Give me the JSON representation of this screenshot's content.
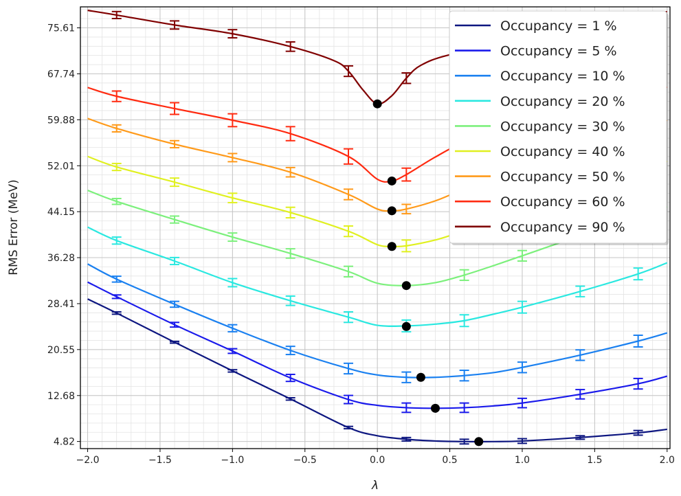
{
  "chart_data": {
    "type": "line",
    "title": "",
    "xlabel": "λ",
    "ylabel": "RMS Error (MeV)",
    "xlim": [
      -2.05,
      2.02
    ],
    "ylim": [
      3.6,
      79.2
    ],
    "x_ticks": [
      -2.0,
      -1.5,
      -1.0,
      -0.5,
      0.0,
      0.5,
      1.0,
      1.5,
      2.0
    ],
    "x_tick_labels": [
      "−2.0",
      "−1.5",
      "−1.0",
      "−0.5",
      "0.0",
      "0.5",
      "1.0",
      "1.5",
      "2.0"
    ],
    "y_ticks": [
      4.82,
      12.68,
      20.55,
      28.41,
      36.28,
      44.15,
      52.01,
      59.88,
      67.74,
      75.61
    ],
    "y_tick_labels": [
      "4.82",
      "12.68",
      "20.55",
      "28.41",
      "36.28",
      "44.15",
      "52.01",
      "59.88",
      "67.74",
      "75.61"
    ],
    "grid": true,
    "legend_position": "top-right",
    "series": [
      {
        "name": "Occupancy = 1 %",
        "color": "#0d1680",
        "x": [
          -2.0,
          -1.8,
          -1.4,
          -1.0,
          -0.6,
          -0.2,
          0.0,
          0.2,
          0.4,
          0.6,
          0.8,
          1.0,
          1.4,
          1.8,
          2.0
        ],
        "y": [
          29.2,
          26.8,
          21.8,
          16.9,
          12.1,
          7.2,
          5.8,
          5.2,
          4.9,
          4.8,
          4.8,
          4.9,
          5.5,
          6.3,
          6.9
        ],
        "errorbars": [
          {
            "x": -1.8,
            "y": 26.8,
            "err": 0.2
          },
          {
            "x": -1.4,
            "y": 21.8,
            "err": 0.15
          },
          {
            "x": -1.0,
            "y": 16.9,
            "err": 0.2
          },
          {
            "x": -0.6,
            "y": 12.1,
            "err": 0.2
          },
          {
            "x": -0.2,
            "y": 7.2,
            "err": 0.2
          },
          {
            "x": 0.2,
            "y": 5.2,
            "err": 0.3
          },
          {
            "x": 0.6,
            "y": 4.8,
            "err": 0.4
          },
          {
            "x": 1.0,
            "y": 4.9,
            "err": 0.4
          },
          {
            "x": 1.4,
            "y": 5.5,
            "err": 0.3
          },
          {
            "x": 1.8,
            "y": 6.3,
            "err": 0.4
          }
        ],
        "minimum": {
          "x": 0.7,
          "y": 4.8
        }
      },
      {
        "name": "Occupancy = 5 %",
        "color": "#1a1aeb",
        "x": [
          -2.0,
          -1.8,
          -1.4,
          -1.0,
          -0.6,
          -0.2,
          0.0,
          0.2,
          0.4,
          0.6,
          0.8,
          1.0,
          1.4,
          1.8,
          2.0
        ],
        "y": [
          32.1,
          29.6,
          24.8,
          20.3,
          15.7,
          12.0,
          11.0,
          10.6,
          10.5,
          10.6,
          10.9,
          11.4,
          12.9,
          14.7,
          16.0
        ],
        "errorbars": [
          {
            "x": -1.8,
            "y": 29.6,
            "err": 0.3
          },
          {
            "x": -1.4,
            "y": 24.8,
            "err": 0.4
          },
          {
            "x": -1.0,
            "y": 20.3,
            "err": 0.4
          },
          {
            "x": -0.6,
            "y": 15.7,
            "err": 0.6
          },
          {
            "x": -0.2,
            "y": 12.0,
            "err": 0.7
          },
          {
            "x": 0.2,
            "y": 10.6,
            "err": 0.8
          },
          {
            "x": 0.6,
            "y": 10.6,
            "err": 0.8
          },
          {
            "x": 1.0,
            "y": 11.4,
            "err": 0.8
          },
          {
            "x": 1.4,
            "y": 12.9,
            "err": 0.8
          },
          {
            "x": 1.8,
            "y": 14.7,
            "err": 0.9
          }
        ],
        "minimum": {
          "x": 0.4,
          "y": 10.5
        }
      },
      {
        "name": "Occupancy = 10 %",
        "color": "#1a80f0",
        "x": [
          -2.0,
          -1.8,
          -1.4,
          -1.0,
          -0.6,
          -0.2,
          0.0,
          0.2,
          0.4,
          0.6,
          0.8,
          1.0,
          1.4,
          1.8,
          2.0
        ],
        "y": [
          35.2,
          32.6,
          28.3,
          24.2,
          20.4,
          17.3,
          16.2,
          15.8,
          15.8,
          16.1,
          16.6,
          17.5,
          19.6,
          22.0,
          23.4
        ],
        "errorbars": [
          {
            "x": -1.8,
            "y": 32.6,
            "err": 0.5
          },
          {
            "x": -1.4,
            "y": 28.3,
            "err": 0.5
          },
          {
            "x": -1.0,
            "y": 24.2,
            "err": 0.6
          },
          {
            "x": -0.6,
            "y": 20.4,
            "err": 0.7
          },
          {
            "x": -0.2,
            "y": 17.3,
            "err": 0.9
          },
          {
            "x": 0.2,
            "y": 15.8,
            "err": 0.9
          },
          {
            "x": 0.6,
            "y": 16.1,
            "err": 0.9
          },
          {
            "x": 1.0,
            "y": 17.5,
            "err": 0.9
          },
          {
            "x": 1.4,
            "y": 19.6,
            "err": 0.9
          },
          {
            "x": 1.8,
            "y": 22.0,
            "err": 1.0
          }
        ],
        "minimum": {
          "x": 0.3,
          "y": 15.8
        }
      },
      {
        "name": "Occupancy = 20 %",
        "color": "#2ae8e0",
        "x": [
          -2.0,
          -1.8,
          -1.4,
          -1.0,
          -0.6,
          -0.2,
          0.0,
          0.2,
          0.4,
          0.6,
          0.8,
          1.0,
          1.4,
          1.8,
          2.0
        ],
        "y": [
          41.5,
          39.2,
          35.7,
          32.0,
          28.9,
          26.1,
          24.7,
          24.6,
          24.9,
          25.5,
          26.6,
          27.8,
          30.5,
          33.5,
          35.4
        ],
        "errorbars": [
          {
            "x": -1.8,
            "y": 39.2,
            "err": 0.6
          },
          {
            "x": -1.4,
            "y": 35.7,
            "err": 0.6
          },
          {
            "x": -1.0,
            "y": 32.0,
            "err": 0.7
          },
          {
            "x": -0.6,
            "y": 28.9,
            "err": 0.8
          },
          {
            "x": -0.2,
            "y": 26.1,
            "err": 0.9
          },
          {
            "x": 0.2,
            "y": 24.6,
            "err": 1.0
          },
          {
            "x": 0.6,
            "y": 25.5,
            "err": 1.0
          },
          {
            "x": 1.0,
            "y": 27.8,
            "err": 1.0
          },
          {
            "x": 1.4,
            "y": 30.5,
            "err": 0.9
          },
          {
            "x": 1.8,
            "y": 33.5,
            "err": 1.0
          }
        ],
        "minimum": {
          "x": 0.2,
          "y": 24.5
        }
      },
      {
        "name": "Occupancy = 30 %",
        "color": "#7cf07c",
        "x": [
          -2.0,
          -1.8,
          -1.4,
          -1.0,
          -0.6,
          -0.2,
          0.0,
          0.2,
          0.4,
          0.6,
          0.8,
          1.0,
          1.4,
          1.8,
          2.0
        ],
        "y": [
          47.8,
          45.9,
          42.8,
          39.8,
          37.0,
          33.9,
          31.9,
          31.5,
          32.0,
          33.3,
          34.9,
          36.6,
          40.0,
          43.0,
          45.0
        ],
        "errorbars": [
          {
            "x": -1.8,
            "y": 45.9,
            "err": 0.5
          },
          {
            "x": -1.4,
            "y": 42.8,
            "err": 0.6
          },
          {
            "x": -1.0,
            "y": 39.8,
            "err": 0.7
          },
          {
            "x": -0.6,
            "y": 37.0,
            "err": 0.8
          },
          {
            "x": -0.2,
            "y": 33.9,
            "err": 0.9
          },
          {
            "x": 0.6,
            "y": 33.3,
            "err": 0.9
          },
          {
            "x": 1.0,
            "y": 36.6,
            "err": 0.9
          }
        ],
        "minimum": {
          "x": 0.2,
          "y": 31.5
        }
      },
      {
        "name": "Occupancy = 40 %",
        "color": "#e0f020",
        "x": [
          -2.0,
          -1.8,
          -1.4,
          -1.0,
          -0.6,
          -0.2,
          0.0,
          0.1,
          0.2,
          0.4,
          0.6,
          1.0,
          1.4,
          1.8,
          2.0
        ],
        "y": [
          53.6,
          51.8,
          49.2,
          46.5,
          44.0,
          40.8,
          38.5,
          38.2,
          38.3,
          39.3,
          40.8,
          43.5,
          47.0,
          50.5,
          52.8
        ],
        "errorbars": [
          {
            "x": -1.8,
            "y": 51.8,
            "err": 0.6
          },
          {
            "x": -1.4,
            "y": 49.2,
            "err": 0.7
          },
          {
            "x": -1.0,
            "y": 46.5,
            "err": 0.8
          },
          {
            "x": -0.6,
            "y": 44.0,
            "err": 0.9
          },
          {
            "x": -0.2,
            "y": 40.8,
            "err": 0.9
          },
          {
            "x": 0.2,
            "y": 38.3,
            "err": 1.0
          }
        ],
        "minimum": {
          "x": 0.1,
          "y": 38.2
        }
      },
      {
        "name": "Occupancy = 50 %",
        "color": "#ff9a1a",
        "x": [
          -2.0,
          -1.8,
          -1.4,
          -1.0,
          -0.6,
          -0.2,
          0.0,
          0.1,
          0.2,
          0.4,
          0.6,
          1.0,
          1.4,
          1.8,
          2.0
        ],
        "y": [
          60.1,
          58.4,
          55.7,
          53.4,
          50.9,
          47.1,
          44.6,
          44.3,
          44.6,
          46.0,
          48.0,
          51.5,
          54.5,
          57.5,
          59.8
        ],
        "errorbars": [
          {
            "x": -1.8,
            "y": 58.4,
            "err": 0.6
          },
          {
            "x": -1.4,
            "y": 55.7,
            "err": 0.6
          },
          {
            "x": -1.0,
            "y": 53.4,
            "err": 0.7
          },
          {
            "x": -0.6,
            "y": 50.9,
            "err": 0.8
          },
          {
            "x": -0.2,
            "y": 47.1,
            "err": 0.9
          },
          {
            "x": 0.2,
            "y": 44.6,
            "err": 0.8
          }
        ],
        "minimum": {
          "x": 0.1,
          "y": 44.3
        }
      },
      {
        "name": "Occupancy = 60 %",
        "color": "#ff2a10",
        "x": [
          -2.0,
          -1.8,
          -1.4,
          -1.0,
          -0.6,
          -0.2,
          0.0,
          0.1,
          0.2,
          0.4,
          0.6,
          1.0,
          1.4,
          1.8,
          2.0
        ],
        "y": [
          65.4,
          63.9,
          61.8,
          59.8,
          57.5,
          53.6,
          49.7,
          49.4,
          50.5,
          53.5,
          56.0,
          59.5,
          62.0,
          64.0,
          65.5
        ],
        "errorbars": [
          {
            "x": -1.8,
            "y": 63.9,
            "err": 0.9
          },
          {
            "x": -1.4,
            "y": 61.8,
            "err": 1.0
          },
          {
            "x": -1.0,
            "y": 59.8,
            "err": 1.1
          },
          {
            "x": -0.6,
            "y": 57.5,
            "err": 1.2
          },
          {
            "x": -0.2,
            "y": 53.6,
            "err": 1.3
          },
          {
            "x": 0.2,
            "y": 50.5,
            "err": 1.1
          }
        ],
        "minimum": {
          "x": 0.1,
          "y": 49.4
        }
      },
      {
        "name": "Occupancy = 90 %",
        "color": "#800000",
        "x": [
          -2.0,
          -1.8,
          -1.4,
          -1.0,
          -0.6,
          -0.3,
          -0.2,
          -0.1,
          0.0,
          0.1,
          0.2,
          0.3,
          0.5,
          1.0,
          1.4,
          1.8,
          2.0
        ],
        "y": [
          78.6,
          77.8,
          76.1,
          74.6,
          72.4,
          70.0,
          68.2,
          65.0,
          62.6,
          64.0,
          67.0,
          69.2,
          71.0,
          73.5,
          75.5,
          77.2,
          78.4
        ],
        "errorbars": [
          {
            "x": -1.8,
            "y": 77.8,
            "err": 0.6
          },
          {
            "x": -1.4,
            "y": 76.1,
            "err": 0.7
          },
          {
            "x": -1.0,
            "y": 74.6,
            "err": 0.7
          },
          {
            "x": -0.6,
            "y": 72.4,
            "err": 0.8
          },
          {
            "x": -0.2,
            "y": 68.2,
            "err": 0.9
          },
          {
            "x": 0.2,
            "y": 67.0,
            "err": 0.9
          }
        ],
        "minimum": {
          "x": 0.0,
          "y": 62.6
        }
      }
    ]
  }
}
